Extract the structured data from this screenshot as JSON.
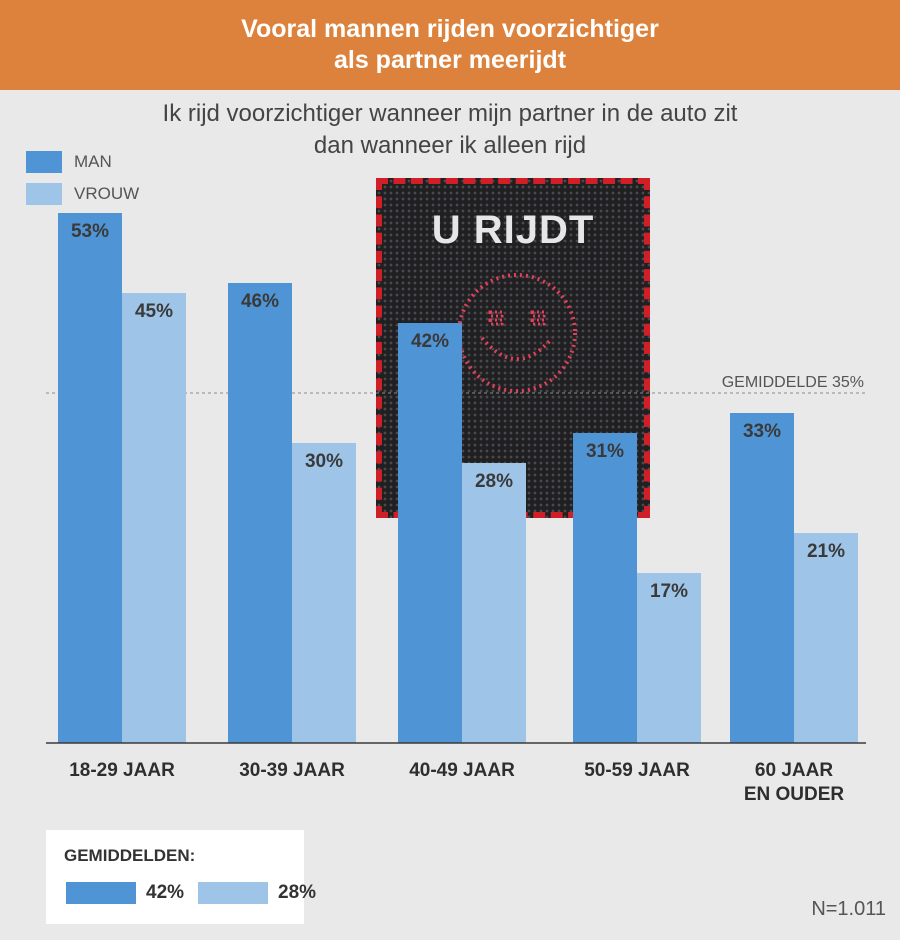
{
  "header": {
    "title_line1": "Vooral mannen rijden voorzichtiger",
    "title_line2": "als partner meerijdt"
  },
  "subtitle": {
    "line1": "Ik rijd voorzichtiger wanneer mijn partner in de auto zit",
    "line2": "dan wanneer ik alleen rijd"
  },
  "legend": {
    "man": "MAN",
    "vrouw": "VROUW"
  },
  "sign": {
    "text": "U RIJDT",
    "icon": "smiley-icon"
  },
  "colors": {
    "man": "#4f94d4",
    "vrouw": "#9ec4e8",
    "header": "#dc823c",
    "sign_border": "#d01f26",
    "led": "#e0405a"
  },
  "chart_data": {
    "type": "bar",
    "categories": [
      [
        "18-29 JAAR"
      ],
      [
        "30-39 JAAR"
      ],
      [
        "40-49 JAAR"
      ],
      [
        "50-59 JAAR"
      ],
      [
        "60 JAAR",
        "EN OUDER"
      ]
    ],
    "series": [
      {
        "name": "MAN",
        "values": [
          53,
          46,
          42,
          31,
          33
        ],
        "labels": [
          "53%",
          "46%",
          "42%",
          "31%",
          "33%"
        ]
      },
      {
        "name": "VROUW",
        "values": [
          45,
          30,
          28,
          17,
          21
        ],
        "labels": [
          "45%",
          "30%",
          "28%",
          "17%",
          "21%"
        ]
      }
    ],
    "reference_line": {
      "value": 35,
      "label": "GEMIDDELDE  35%"
    },
    "ylim": [
      0,
      53
    ]
  },
  "averages": {
    "title": "GEMIDDELDEN:",
    "man": "42%",
    "vrouw": "28%"
  },
  "note": "N=1.011"
}
